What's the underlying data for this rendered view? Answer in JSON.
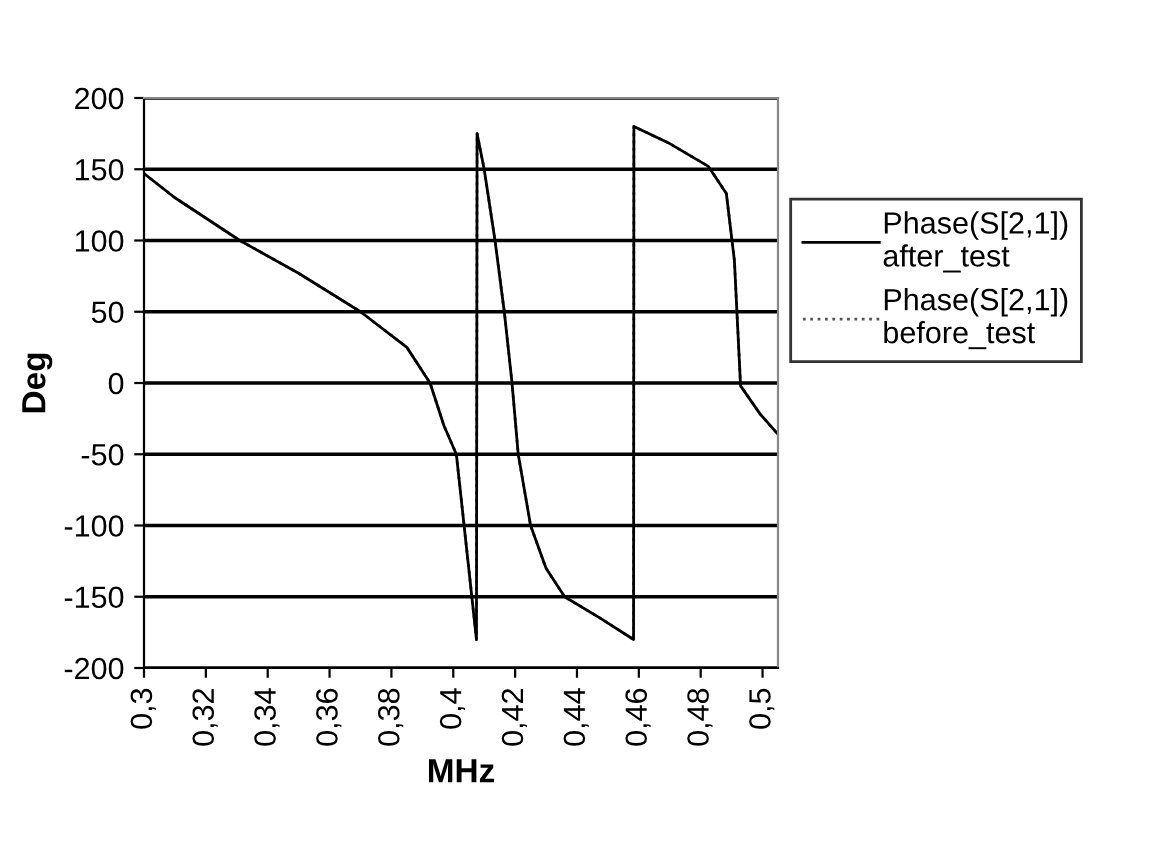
{
  "chart_data": {
    "type": "line",
    "xlabel": "MHz",
    "ylabel": "Deg",
    "x": [
      0.3,
      0.31,
      0.331,
      0.35,
      0.37,
      0.385,
      0.3925,
      0.397,
      0.401,
      0.4035,
      0.406,
      0.4075,
      0.4077,
      0.41,
      0.4135,
      0.4165,
      0.419,
      0.421,
      0.425,
      0.43,
      0.436,
      0.4475,
      0.4583,
      0.4584,
      0.47,
      0.4825,
      0.4883,
      0.4909,
      0.4929,
      0.4993,
      0.505
    ],
    "series": [
      {
        "name": "Phase(S[2,1])\nafter_test",
        "color": "#000000",
        "line_style": "solid",
        "values": [
          147,
          130,
          100,
          77,
          50,
          25,
          0,
          -30,
          -50,
          -100,
          -150,
          -180,
          175,
          150,
          100,
          50,
          0,
          -50,
          -100,
          -130,
          -150,
          -165,
          -180,
          180,
          168,
          152,
          133,
          86,
          -2,
          -22,
          -36
        ]
      },
      {
        "name": "Phase(S[2,1])\nbefore_test",
        "color": "#555555",
        "line_style": "dotted",
        "values": [
          147,
          130,
          100,
          77,
          50,
          25,
          0,
          -30,
          -50,
          -100,
          -150,
          -180,
          175,
          150,
          100,
          50,
          0,
          -50,
          -100,
          -130,
          -150,
          -165,
          -180,
          180,
          168,
          152,
          133,
          86,
          -2,
          -22,
          -36
        ]
      }
    ],
    "xlim": [
      0.3,
      0.505
    ],
    "xticks": [
      {
        "value": 0.3,
        "label": "0,3"
      },
      {
        "value": 0.32,
        "label": "0,32"
      },
      {
        "value": 0.34,
        "label": "0,34"
      },
      {
        "value": 0.36,
        "label": "0,36"
      },
      {
        "value": 0.38,
        "label": "0,38"
      },
      {
        "value": 0.4,
        "label": "0,4"
      },
      {
        "value": 0.42,
        "label": "0,42"
      },
      {
        "value": 0.44,
        "label": "0,44"
      },
      {
        "value": 0.46,
        "label": "0,46"
      },
      {
        "value": 0.48,
        "label": "0,48"
      },
      {
        "value": 0.5,
        "label": "0,5"
      }
    ],
    "ylim": [
      -200,
      200
    ],
    "yticks": [
      -200,
      -150,
      -100,
      -50,
      0,
      50,
      100,
      150,
      200
    ],
    "grid": "y",
    "legend": "right"
  }
}
